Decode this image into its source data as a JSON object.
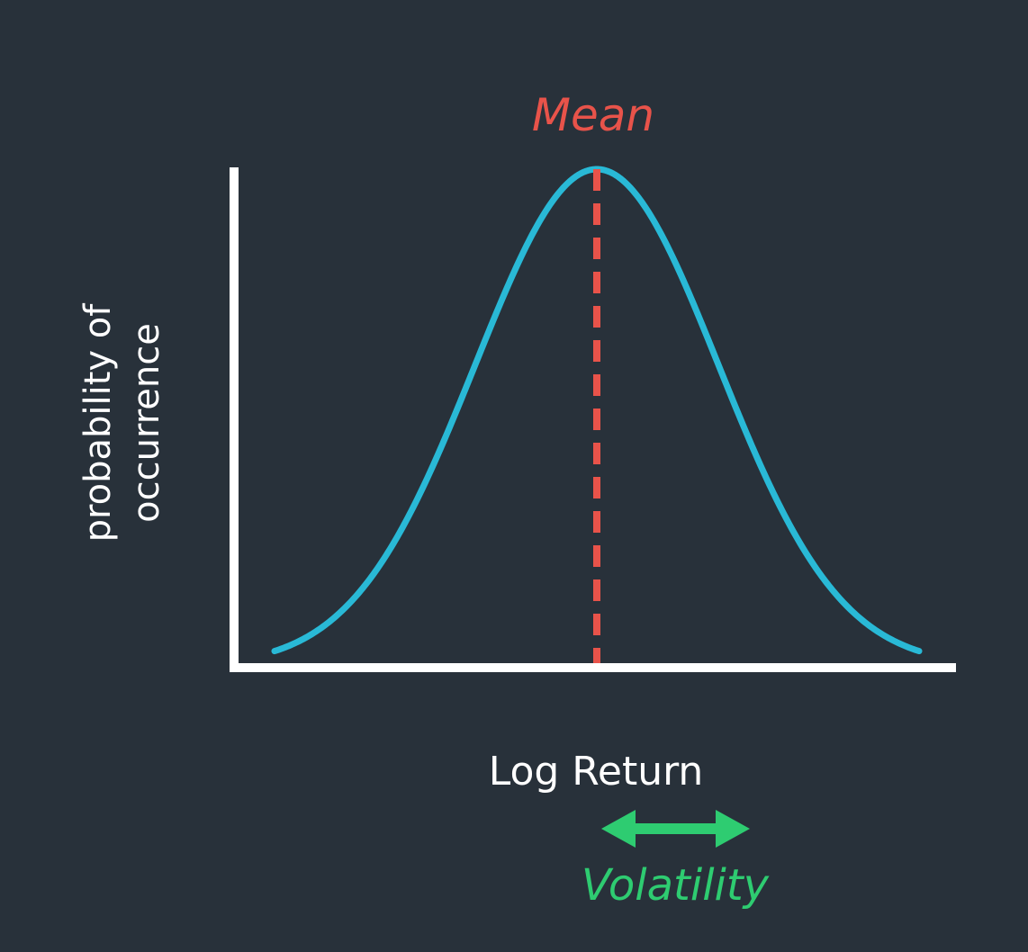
{
  "labels": {
    "mean": "Mean",
    "y_axis_line1": "probability of",
    "y_axis_line2": "occurrence",
    "x_axis": "Log Return",
    "volatility": "Volatility"
  },
  "colors": {
    "background": "#28313a",
    "axes": "#ffffff",
    "curve": "#29b9d6",
    "mean_line": "#e8534a",
    "volatility": "#2ecc71",
    "text": "#ffffff"
  },
  "icons": {
    "volatility_arrow": "double-headed-arrow-icon"
  }
}
